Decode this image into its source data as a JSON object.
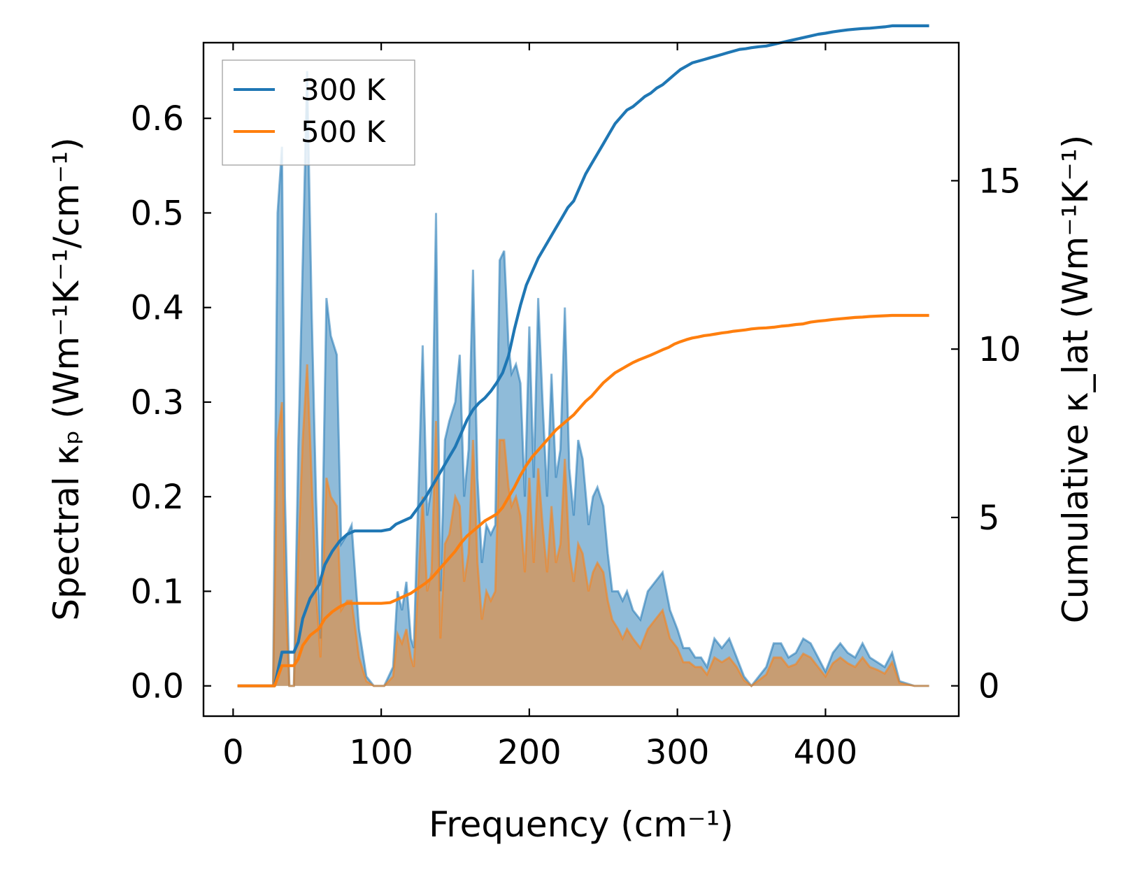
{
  "chart_data": {
    "type": "line",
    "xlabel": "Frequency (cm⁻¹)",
    "ylabel_left": "Spectral κₚ (Wm⁻¹K⁻¹/cm⁻¹)",
    "ylabel_right": "Cumulative κ_lat (Wm⁻¹K⁻¹)",
    "xlim": [
      -20,
      490
    ],
    "ylim_left": [
      -0.032,
      0.68
    ],
    "ylim_right": [
      -0.9,
      19.1
    ],
    "x_ticks": [
      0,
      100,
      200,
      300,
      400
    ],
    "x_tick_labels": [
      "0",
      "100",
      "200",
      "300",
      "400"
    ],
    "y_left_ticks": [
      0.0,
      0.1,
      0.2,
      0.3,
      0.4,
      0.5,
      0.6
    ],
    "y_left_tick_labels": [
      "0.0",
      "0.1",
      "0.2",
      "0.3",
      "0.4",
      "0.5",
      "0.6"
    ],
    "y_right_ticks": [
      0,
      5,
      10,
      15
    ],
    "y_right_tick_labels": [
      "0",
      "5",
      "10",
      "15"
    ],
    "legend": {
      "position": "top-left",
      "entries": [
        "300 K",
        "500 K"
      ]
    },
    "series": [
      {
        "name": "300 K",
        "color": "#1f77b4",
        "fill_color": "#1f77b4",
        "spectral": {
          "x": [
            3,
            27,
            30,
            33,
            35,
            38,
            41,
            44,
            47,
            50,
            53,
            56,
            59,
            63,
            66,
            70,
            73,
            77,
            80,
            85,
            90,
            95,
            102,
            108,
            111,
            114,
            117,
            120,
            122,
            125,
            128,
            131,
            134,
            137,
            140,
            143,
            146,
            150,
            153,
            156,
            159,
            162,
            165,
            168,
            171,
            174,
            177,
            180,
            183,
            186,
            188,
            191,
            194,
            197,
            200,
            203,
            206,
            209,
            212,
            215,
            218,
            221,
            224,
            227,
            230,
            233,
            236,
            240,
            243,
            246,
            250,
            253,
            256,
            260,
            263,
            266,
            270,
            275,
            280,
            285,
            290,
            295,
            300,
            304,
            308,
            312,
            316,
            320,
            325,
            330,
            335,
            340,
            345,
            350,
            355,
            360,
            365,
            370,
            375,
            380,
            385,
            390,
            395,
            400,
            405,
            410,
            415,
            420,
            425,
            430,
            435,
            440,
            445,
            450,
            460,
            470
          ],
          "y": [
            0.0,
            0.0,
            0.5,
            0.57,
            0.2,
            0.0,
            0.0,
            0.25,
            0.45,
            0.65,
            0.4,
            0.2,
            0.05,
            0.41,
            0.37,
            0.35,
            0.15,
            0.16,
            0.17,
            0.06,
            0.01,
            0.0,
            0.0,
            0.02,
            0.1,
            0.08,
            0.11,
            0.05,
            0.04,
            0.2,
            0.36,
            0.18,
            0.21,
            0.5,
            0.1,
            0.26,
            0.28,
            0.3,
            0.35,
            0.2,
            0.25,
            0.44,
            0.22,
            0.13,
            0.17,
            0.16,
            0.17,
            0.45,
            0.46,
            0.36,
            0.33,
            0.34,
            0.32,
            0.2,
            0.38,
            0.22,
            0.41,
            0.3,
            0.2,
            0.33,
            0.22,
            0.25,
            0.4,
            0.23,
            0.18,
            0.26,
            0.24,
            0.17,
            0.2,
            0.21,
            0.19,
            0.14,
            0.1,
            0.1,
            0.09,
            0.1,
            0.08,
            0.07,
            0.1,
            0.11,
            0.12,
            0.08,
            0.06,
            0.04,
            0.04,
            0.03,
            0.03,
            0.02,
            0.05,
            0.04,
            0.05,
            0.03,
            0.01,
            0.0,
            0.01,
            0.02,
            0.045,
            0.045,
            0.03,
            0.035,
            0.05,
            0.045,
            0.03,
            0.015,
            0.035,
            0.045,
            0.035,
            0.03,
            0.045,
            0.03,
            0.025,
            0.02,
            0.035,
            0.005,
            0.0,
            0.0
          ]
        },
        "cumulative": {
          "x": [
            3,
            28,
            33,
            38,
            41,
            44,
            47,
            52,
            58,
            62,
            67,
            72,
            77,
            82,
            90,
            100,
            106,
            110,
            115,
            120,
            125,
            130,
            134,
            138,
            142,
            146,
            150,
            154,
            158,
            162,
            166,
            170,
            174,
            178,
            182,
            186,
            190,
            194,
            198,
            202,
            206,
            210,
            214,
            218,
            222,
            226,
            230,
            234,
            238,
            242,
            246,
            250,
            254,
            258,
            262,
            266,
            270,
            274,
            278,
            282,
            286,
            290,
            294,
            298,
            302,
            306,
            310,
            314,
            318,
            322,
            326,
            330,
            334,
            338,
            342,
            346,
            350,
            355,
            360,
            365,
            370,
            375,
            380,
            385,
            390,
            395,
            400,
            405,
            410,
            415,
            420,
            425,
            430,
            435,
            440,
            445,
            450,
            460,
            470
          ],
          "y": [
            0.0,
            0.0,
            1.0,
            1.0,
            1.0,
            1.3,
            2.0,
            2.6,
            3.0,
            3.6,
            4.0,
            4.3,
            4.5,
            4.6,
            4.6,
            4.6,
            4.65,
            4.8,
            4.9,
            5.0,
            5.3,
            5.6,
            5.9,
            6.2,
            6.5,
            6.8,
            7.1,
            7.5,
            7.9,
            8.2,
            8.4,
            8.55,
            8.75,
            9.0,
            9.3,
            9.8,
            10.6,
            11.3,
            11.9,
            12.3,
            12.7,
            13.0,
            13.3,
            13.6,
            13.9,
            14.2,
            14.4,
            14.8,
            15.2,
            15.5,
            15.8,
            16.1,
            16.4,
            16.7,
            16.9,
            17.1,
            17.2,
            17.35,
            17.5,
            17.6,
            17.75,
            17.85,
            18.0,
            18.15,
            18.3,
            18.4,
            18.5,
            18.55,
            18.6,
            18.65,
            18.7,
            18.75,
            18.8,
            18.85,
            18.9,
            18.92,
            18.95,
            18.98,
            19.0,
            19.05,
            19.1,
            19.15,
            19.2,
            19.25,
            19.3,
            19.35,
            19.38,
            19.42,
            19.45,
            19.48,
            19.5,
            19.52,
            19.53,
            19.55,
            19.57,
            19.6,
            19.6,
            19.6,
            19.6
          ]
        }
      },
      {
        "name": "500 K",
        "color": "#ff7f0e",
        "fill_color": "#ff7f0e",
        "spectral": {
          "x": [
            3,
            27,
            30,
            33,
            35,
            38,
            41,
            44,
            47,
            50,
            53,
            56,
            59,
            63,
            66,
            70,
            73,
            77,
            80,
            85,
            90,
            95,
            102,
            108,
            111,
            114,
            117,
            120,
            122,
            125,
            128,
            131,
            134,
            137,
            140,
            143,
            146,
            150,
            153,
            156,
            159,
            162,
            165,
            168,
            171,
            174,
            177,
            180,
            183,
            186,
            188,
            191,
            194,
            197,
            200,
            203,
            206,
            209,
            212,
            215,
            218,
            221,
            224,
            227,
            230,
            233,
            236,
            240,
            243,
            246,
            250,
            253,
            256,
            260,
            263,
            266,
            270,
            275,
            280,
            285,
            290,
            295,
            300,
            304,
            308,
            312,
            316,
            320,
            325,
            330,
            335,
            340,
            345,
            350,
            355,
            360,
            365,
            370,
            375,
            380,
            385,
            390,
            395,
            400,
            405,
            410,
            415,
            420,
            425,
            430,
            435,
            440,
            445,
            450,
            460,
            470
          ],
          "y": [
            0.0,
            0.0,
            0.26,
            0.3,
            0.1,
            0.0,
            0.0,
            0.14,
            0.26,
            0.34,
            0.22,
            0.1,
            0.03,
            0.22,
            0.2,
            0.19,
            0.08,
            0.09,
            0.09,
            0.03,
            0.005,
            0.0,
            0.0,
            0.01,
            0.055,
            0.045,
            0.06,
            0.03,
            0.02,
            0.11,
            0.2,
            0.1,
            0.12,
            0.28,
            0.05,
            0.15,
            0.16,
            0.2,
            0.19,
            0.11,
            0.14,
            0.26,
            0.13,
            0.07,
            0.1,
            0.09,
            0.1,
            0.26,
            0.26,
            0.21,
            0.19,
            0.2,
            0.18,
            0.12,
            0.22,
            0.13,
            0.23,
            0.17,
            0.12,
            0.19,
            0.13,
            0.15,
            0.24,
            0.14,
            0.11,
            0.15,
            0.14,
            0.1,
            0.12,
            0.13,
            0.12,
            0.09,
            0.07,
            0.06,
            0.05,
            0.06,
            0.05,
            0.04,
            0.06,
            0.07,
            0.08,
            0.05,
            0.04,
            0.025,
            0.025,
            0.02,
            0.02,
            0.012,
            0.03,
            0.025,
            0.03,
            0.02,
            0.006,
            0.0,
            0.006,
            0.012,
            0.03,
            0.03,
            0.02,
            0.023,
            0.034,
            0.03,
            0.02,
            0.01,
            0.024,
            0.03,
            0.024,
            0.02,
            0.03,
            0.02,
            0.017,
            0.013,
            0.025,
            0.003,
            0.0,
            0.0
          ]
        },
        "cumulative": {
          "x": [
            3,
            28,
            33,
            38,
            41,
            44,
            47,
            52,
            58,
            62,
            67,
            72,
            77,
            82,
            90,
            100,
            106,
            110,
            115,
            120,
            125,
            130,
            134,
            138,
            142,
            146,
            150,
            154,
            158,
            162,
            166,
            170,
            174,
            178,
            182,
            186,
            190,
            194,
            198,
            202,
            206,
            210,
            214,
            218,
            222,
            226,
            230,
            234,
            238,
            242,
            246,
            250,
            254,
            258,
            262,
            266,
            270,
            274,
            278,
            282,
            286,
            290,
            294,
            298,
            302,
            306,
            310,
            314,
            318,
            322,
            326,
            330,
            334,
            338,
            342,
            346,
            350,
            355,
            360,
            365,
            370,
            375,
            380,
            385,
            390,
            395,
            400,
            405,
            410,
            415,
            420,
            425,
            430,
            435,
            440,
            445,
            450,
            460,
            470
          ],
          "y": [
            0.0,
            0.0,
            0.6,
            0.6,
            0.6,
            0.8,
            1.2,
            1.5,
            1.7,
            2.0,
            2.2,
            2.35,
            2.45,
            2.45,
            2.45,
            2.45,
            2.47,
            2.55,
            2.65,
            2.75,
            2.9,
            3.05,
            3.2,
            3.4,
            3.6,
            3.8,
            4.0,
            4.25,
            4.45,
            4.6,
            4.75,
            4.9,
            5.0,
            5.1,
            5.3,
            5.6,
            5.9,
            6.25,
            6.55,
            6.8,
            7.0,
            7.2,
            7.4,
            7.6,
            7.75,
            7.9,
            8.05,
            8.25,
            8.45,
            8.6,
            8.8,
            9.0,
            9.15,
            9.3,
            9.4,
            9.5,
            9.6,
            9.68,
            9.75,
            9.82,
            9.9,
            9.98,
            10.05,
            10.15,
            10.22,
            10.28,
            10.33,
            10.36,
            10.4,
            10.42,
            10.45,
            10.48,
            10.5,
            10.53,
            10.55,
            10.57,
            10.6,
            10.62,
            10.63,
            10.65,
            10.68,
            10.7,
            10.73,
            10.75,
            10.8,
            10.83,
            10.85,
            10.88,
            10.9,
            10.92,
            10.94,
            10.95,
            10.97,
            10.98,
            10.99,
            11.0,
            11.0,
            11.0,
            11.0
          ]
        }
      }
    ]
  }
}
